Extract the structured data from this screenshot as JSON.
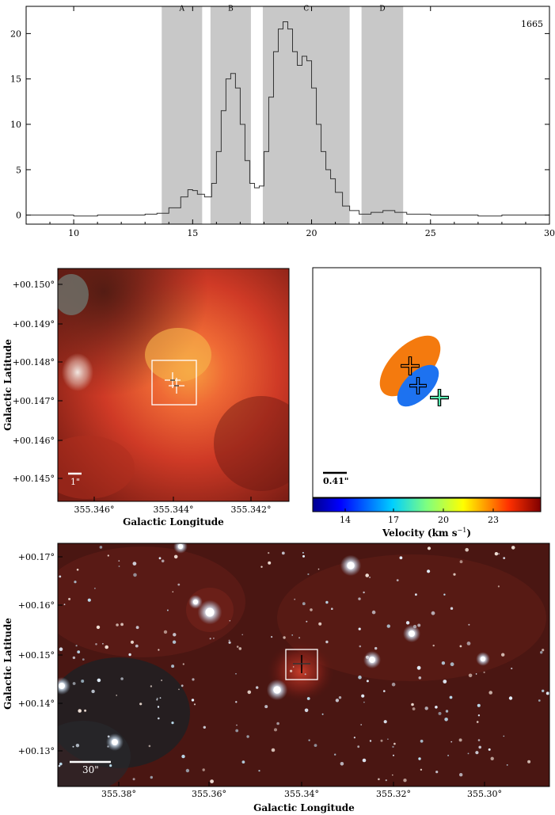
{
  "chart_data": [
    {
      "type": "line",
      "annotation": "1665",
      "xlim": [
        8,
        30
      ],
      "ylim": [
        -1,
        23
      ],
      "x_ticks": [
        "10",
        "15",
        "20",
        "25",
        "30"
      ],
      "y_ticks": [
        "0",
        "5",
        "10",
        "15",
        "20"
      ],
      "regions": [
        {
          "label": "A",
          "x0": 13.7,
          "x1": 15.4
        },
        {
          "label": "B",
          "x0": 15.75,
          "x1": 17.45
        },
        {
          "label": "C",
          "x0": 17.95,
          "x1": 21.6
        },
        {
          "label": "D",
          "x0": 22.1,
          "x1": 23.85
        }
      ],
      "x": [
        8.0,
        9.0,
        10.0,
        11.0,
        12.0,
        13.0,
        13.5,
        14.0,
        14.5,
        14.8,
        15.0,
        15.2,
        15.5,
        15.8,
        16.0,
        16.2,
        16.4,
        16.6,
        16.8,
        17.0,
        17.2,
        17.4,
        17.6,
        17.8,
        18.0,
        18.2,
        18.4,
        18.6,
        18.8,
        19.0,
        19.2,
        19.4,
        19.6,
        19.8,
        20.0,
        20.2,
        20.4,
        20.6,
        20.8,
        21.0,
        21.3,
        21.6,
        22.0,
        22.5,
        23.0,
        23.5,
        24.0,
        25.0,
        26.0,
        27.0,
        28.0,
        29.0,
        30.0
      ],
      "y": [
        0.0,
        0.0,
        -0.1,
        0.0,
        0.0,
        0.1,
        0.2,
        0.8,
        2.0,
        2.8,
        2.7,
        2.3,
        2.0,
        3.5,
        7.0,
        11.5,
        15.0,
        15.6,
        14.0,
        10.0,
        6.0,
        3.5,
        3.0,
        3.2,
        7.0,
        13.0,
        18.0,
        20.5,
        21.3,
        20.5,
        18.0,
        16.5,
        17.5,
        17.0,
        14.0,
        10.0,
        7.0,
        5.0,
        4.0,
        2.5,
        1.0,
        0.5,
        0.1,
        0.3,
        0.5,
        0.3,
        0.1,
        0.0,
        0.0,
        -0.1,
        0.0,
        0.0,
        0.0
      ]
    },
    {
      "type": "image",
      "xlabel": "Galactic Longitude",
      "ylabel": "Galactic Latitude",
      "x_ticks": [
        "355.346°",
        "355.344°",
        "355.342°"
      ],
      "y_ticks": [
        "+00.150°",
        "+00.149°",
        "+00.148°",
        "+00.147°",
        "+00.146°",
        "+00.145°"
      ],
      "scalebar": "1\""
    },
    {
      "type": "scatter",
      "colorbar_title": "Velocity (km s",
      "colorbar_exponent": "−1",
      "colorbar_ticks": [
        "14",
        "17",
        "20",
        "23"
      ],
      "scalebar": "0.41\"",
      "ellipse_colors": [
        "#f47a0e",
        "#1d72f0"
      ],
      "point_colors": [
        "#f47a0e",
        "#1d72f0",
        "#56f2b2"
      ]
    },
    {
      "type": "image",
      "xlabel": "Galactic Longitude",
      "ylabel": "Galactic Latitude",
      "x_ticks": [
        "355.38°",
        "355.36°",
        "355.34°",
        "355.32°",
        "355.30°"
      ],
      "y_ticks": [
        "+00.17°",
        "+00.16°",
        "+00.15°",
        "+00.14°",
        "+00.13°"
      ],
      "scalebar": "30\""
    }
  ]
}
